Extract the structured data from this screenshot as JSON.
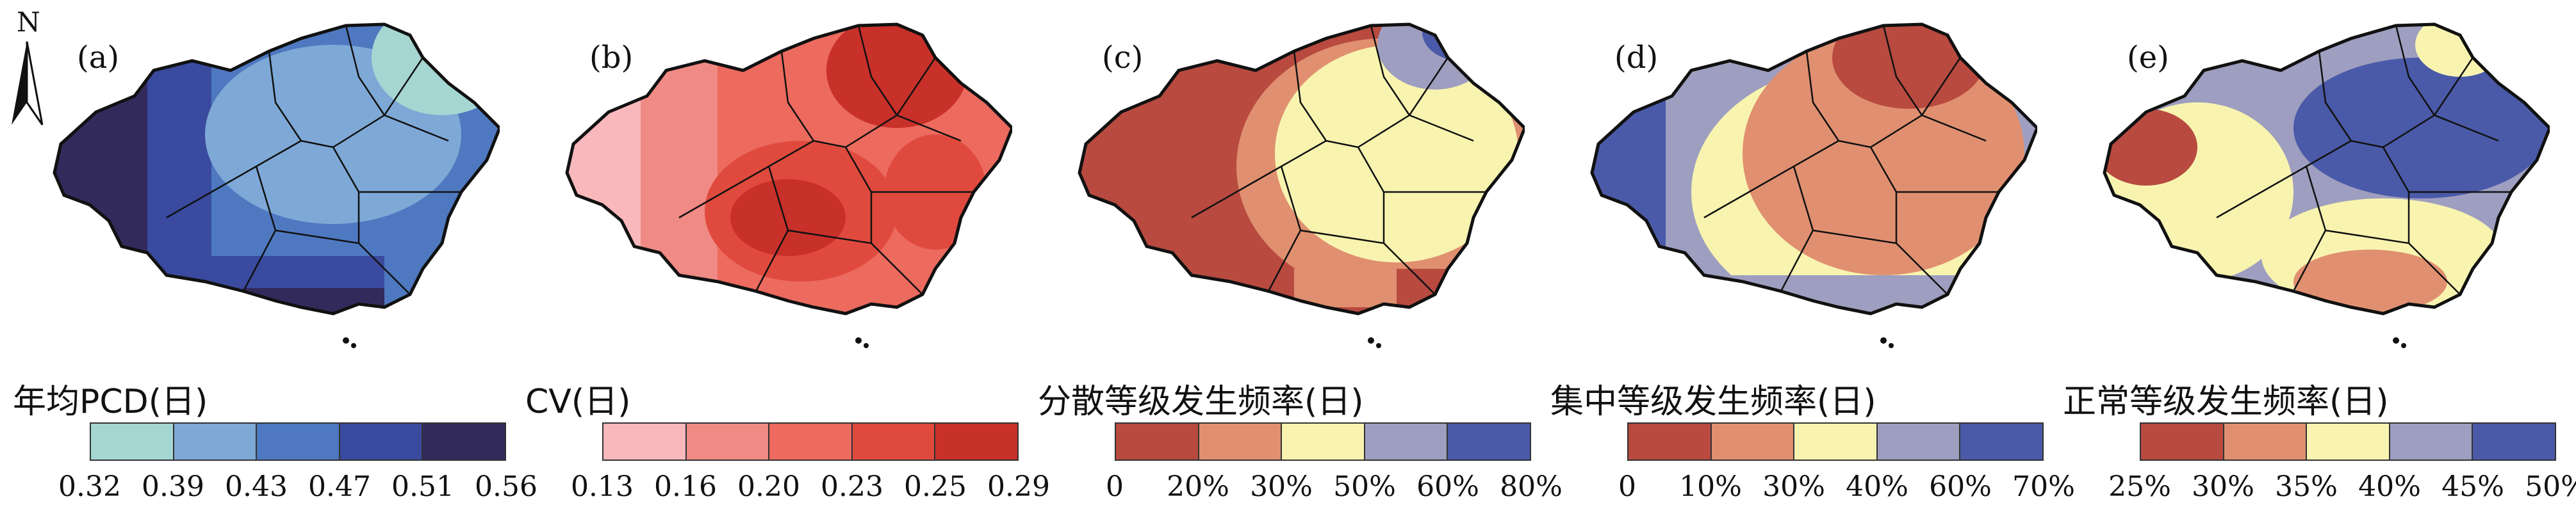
{
  "north_arrow": {
    "letter": "N"
  },
  "panels": [
    {
      "label": "(a)",
      "legend_title": "年均PCD(日)",
      "colors": [
        "#a6d6d2",
        "#7ea8d6",
        "#4e79c0",
        "#3a4a9e",
        "#332a5c"
      ],
      "ticks": [
        "0.32",
        "0.39",
        "0.43",
        "0.47",
        "0.51",
        "0.56"
      ]
    },
    {
      "label": "(b)",
      "legend_title": "CV(日)",
      "colors": [
        "#f8b8bc",
        "#f08a84",
        "#ec6a5e",
        "#e04a3e",
        "#c8302a"
      ],
      "ticks": [
        "0.13",
        "0.16",
        "0.20",
        "0.23",
        "0.25",
        "0.29"
      ]
    },
    {
      "label": "(c)",
      "legend_title": "分散等级发生频率(日)",
      "colors": [
        "#b84a40",
        "#e09070",
        "#f8f4b0",
        "#9e9ec0",
        "#4a5aa8"
      ],
      "ticks": [
        "0",
        "20%",
        "30%",
        "50%",
        "60%",
        "80%"
      ]
    },
    {
      "label": "(d)",
      "legend_title": "集中等级发生频率(日)",
      "colors": [
        "#b84a40",
        "#e09070",
        "#f8f4b0",
        "#9e9ec0",
        "#4a5aa8"
      ],
      "ticks": [
        "0",
        "10%",
        "30%",
        "40%",
        "60%",
        "70%"
      ]
    },
    {
      "label": "(e)",
      "legend_title": "正常等级发生频率(日)",
      "colors": [
        "#b84a40",
        "#e09070",
        "#f8f4b0",
        "#9e9ec0",
        "#4a5aa8"
      ],
      "ticks": [
        "25%",
        "30%",
        "35%",
        "40%",
        "45%",
        "50%"
      ]
    }
  ]
}
